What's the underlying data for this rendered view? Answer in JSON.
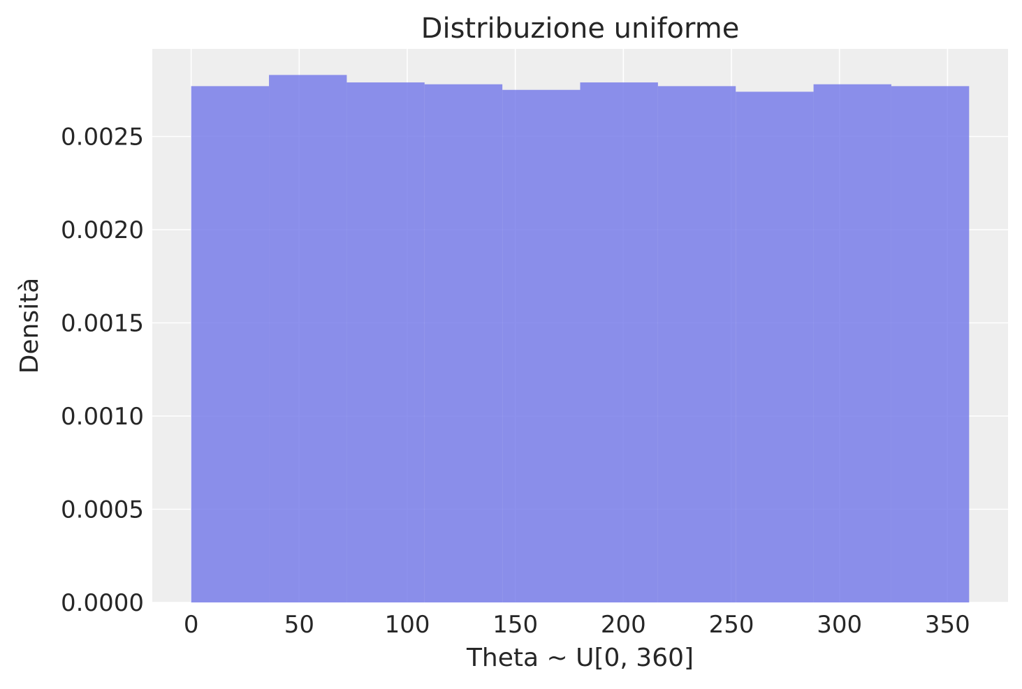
{
  "chart_data": {
    "type": "bar",
    "histogram": true,
    "title": "Distribuzione uniforme",
    "xlabel": "Theta ~ U[0, 360]",
    "ylabel": "Densità",
    "bin_edges": [
      0,
      36,
      72,
      108,
      144,
      180,
      216,
      252,
      288,
      324,
      360
    ],
    "values": [
      0.00277,
      0.00283,
      0.00279,
      0.00278,
      0.00275,
      0.00279,
      0.00277,
      0.00274,
      0.00278,
      0.00277
    ],
    "xlim": [
      -18,
      378
    ],
    "ylim": [
      0,
      0.00297
    ],
    "xticks": [
      0,
      50,
      100,
      150,
      200,
      250,
      300,
      350
    ],
    "xtick_labels": [
      "0",
      "50",
      "100",
      "150",
      "200",
      "250",
      "300",
      "350"
    ],
    "yticks": [
      0,
      0.0005,
      0.001,
      0.0015,
      0.002,
      0.0025
    ],
    "ytick_labels": [
      "0.0000",
      "0.0005",
      "0.0010",
      "0.0015",
      "0.0020",
      "0.0025"
    ],
    "grid": true,
    "colors": {
      "bar": "#7076e8",
      "bar_opacity": 0.8,
      "plot_background": "#eeeeee",
      "grid": "#ffffff",
      "text": "#262626"
    }
  }
}
